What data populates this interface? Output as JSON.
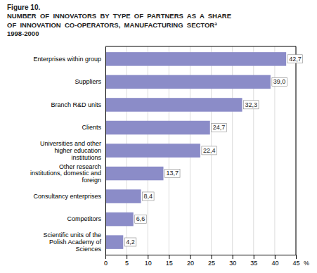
{
  "chart_data": {
    "type": "bar",
    "orientation": "horizontal",
    "title": "Figure 10.\nNUMBER  OF  INNOVATORS  BY  TYPE  OF  PARTNERS  AS  A  SHARE\nOF  INNOVATION  CO-OPERATORS,  MANUFACTURING  SECTORª\n1998-2000",
    "xlabel": "%",
    "categories": [
      "Enterprises within group",
      "Suppliers",
      "Branch R&D units",
      "Clients",
      "Universities and other\nhigher education\ninstitutions",
      "Other research\ninstitutions, domestic and\nforeign",
      "Consultancy enterprises",
      "Competitors",
      "Scientific units of the\nPolish Academy of\nSciences"
    ],
    "values": [
      42.7,
      39.0,
      32.3,
      24.7,
      22.4,
      13.7,
      8.4,
      6.6,
      4.2
    ],
    "value_labels": [
      "42,7",
      "39,0",
      "32,3",
      "24,7",
      "22,4",
      "13,7",
      "8,4",
      "6,6",
      "4,2"
    ],
    "data_labels": true,
    "color": "#8B8CC8",
    "xlim": [
      0,
      45
    ],
    "xticks": [
      0,
      5,
      10,
      15,
      20,
      25,
      30,
      35,
      40,
      45
    ],
    "grid": true
  }
}
